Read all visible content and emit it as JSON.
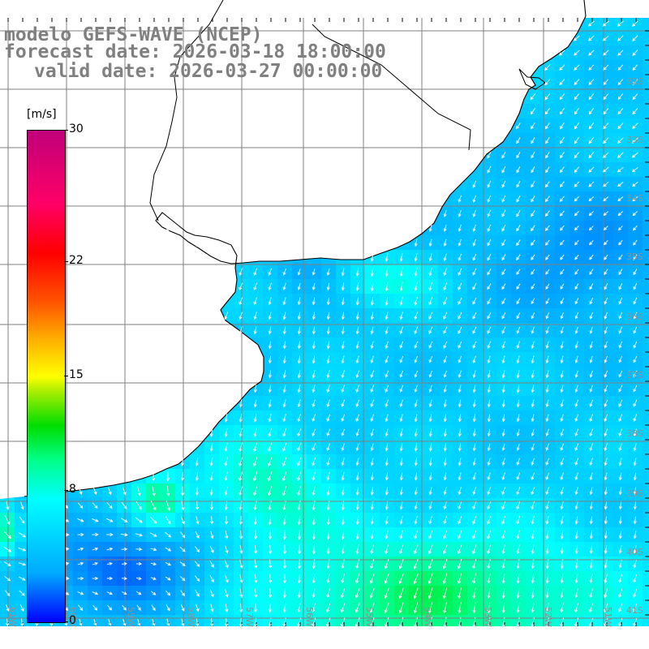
{
  "title": {
    "model": "modelo GEFS-WAVE (NCEP)",
    "forecast": "forecast date: 2026-03-18 18:00:00",
    "valid": "valid date: 2026-03-27 00:00:00"
  },
  "colorbar": {
    "unit": "[m/s]",
    "min": 0,
    "max": 30,
    "ticks": [
      "30",
      "22",
      "15",
      "8",
      "0"
    ],
    "tick_values": [
      30,
      22,
      15,
      8,
      0
    ],
    "colors": {
      "low": "#0000ff",
      "mid_low": "#00ffff",
      "mid": "#00dd00",
      "mid_high": "#ffff00",
      "high": "#ff0000",
      "top": "#c0007a"
    }
  },
  "map": {
    "variable": "wind speed",
    "vector_color": "#ffffff",
    "land_color": "#ffffff",
    "coastline_color": "#000000",
    "grid_color": "#808080",
    "grid_on": true,
    "lon_labels": [
      "61W",
      "60W",
      "59W",
      "58W",
      "57W",
      "56W",
      "55W",
      "54W",
      "53W",
      "52W",
      "51W"
    ],
    "lat_labels": [
      "32S",
      "33S",
      "34S",
      "35S",
      "36S",
      "37S",
      "38S",
      "39S",
      "40S",
      "41S"
    ]
  }
}
